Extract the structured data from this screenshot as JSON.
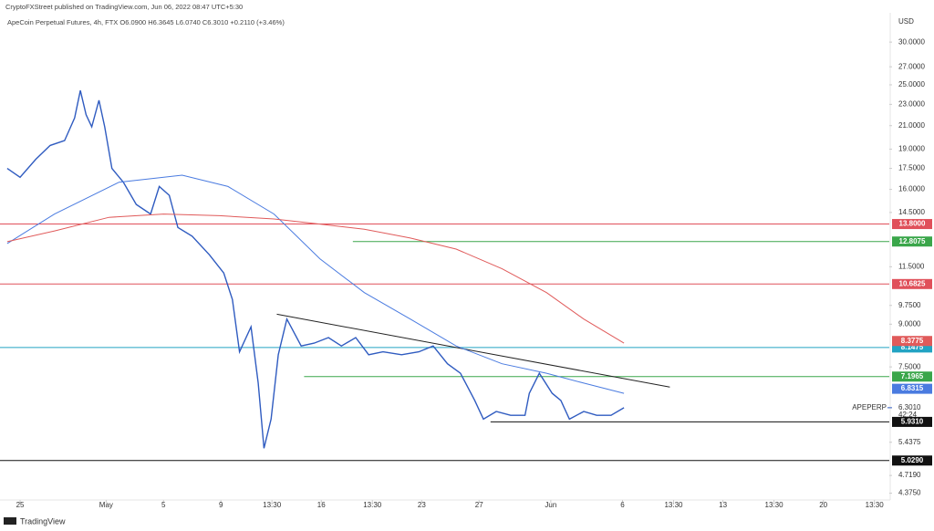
{
  "header": {
    "publisher": "CryptoFXStreet published on TradingView.com, Jun 06, 2022 08:47 UTC+5:30",
    "footer": "TradingView"
  },
  "chart_data": {
    "type": "line",
    "title": "ApeCoin Perpetual Futures, 4h, FTX  O6.0900 H6.3645 L6.0740 C6.3010 +0.2110 (+3.46%)",
    "y_unit": "USD",
    "log_scale": true,
    "grid": false,
    "xlim": [
      -1.4,
      60.6
    ],
    "ylim": [
      4.25,
      34
    ],
    "xticks": [
      {
        "value": 0,
        "label": "25"
      },
      {
        "value": 6,
        "label": "May"
      },
      {
        "value": 10,
        "label": "5"
      },
      {
        "value": 14,
        "label": "9"
      },
      {
        "value": 17.56,
        "label": "13:30"
      },
      {
        "value": 21,
        "label": "16"
      },
      {
        "value": 24.56,
        "label": "13:30"
      },
      {
        "value": 28,
        "label": "23"
      },
      {
        "value": 32,
        "label": "27"
      },
      {
        "value": 37,
        "label": "Jun"
      },
      {
        "value": 42,
        "label": "6"
      },
      {
        "value": 45.56,
        "label": "13:30"
      },
      {
        "value": 49,
        "label": "13"
      },
      {
        "value": 52.56,
        "label": "13:30"
      },
      {
        "value": 56,
        "label": "20"
      },
      {
        "value": 59.56,
        "label": "13:30"
      }
    ],
    "yticks": [
      {
        "value": 30,
        "label": "30.0000"
      },
      {
        "value": 27,
        "label": "27.0000"
      },
      {
        "value": 25,
        "label": "25.0000"
      },
      {
        "value": 23,
        "label": "23.0000"
      },
      {
        "value": 21,
        "label": "21.0000"
      },
      {
        "value": 19,
        "label": "19.0000"
      },
      {
        "value": 17.5,
        "label": "17.5000"
      },
      {
        "value": 16,
        "label": "16.0000"
      },
      {
        "value": 14.5,
        "label": "14.5000"
      },
      {
        "value": 11.5,
        "label": "11.5000"
      },
      {
        "value": 9.75,
        "label": "9.7500"
      },
      {
        "value": 9,
        "label": "9.0000"
      },
      {
        "value": 7.5,
        "label": "7.5000"
      },
      {
        "value": 5.4375,
        "label": "5.4375"
      },
      {
        "value": 4.719,
        "label": "4.7190"
      },
      {
        "value": 4.375,
        "label": "4.3750"
      }
    ],
    "series": [
      {
        "color": "#2f5bc0",
        "width": 1.4,
        "x": [
          -0.9,
          0,
          1.1,
          2.1,
          3.1,
          3.8,
          4.2,
          4.6,
          5,
          5.5,
          5.9,
          6.4,
          7.2,
          8.1,
          9.1,
          9.7,
          10.4,
          11,
          12,
          13.2,
          14.2,
          14.8,
          15.3,
          16.1,
          16.6,
          17,
          17.5,
          18,
          18.6,
          19.6,
          20.5,
          21.5,
          22.4,
          23.4,
          24.3,
          25.3,
          26.6,
          27.8,
          28.8,
          29.8,
          30.7,
          31.7,
          32.3,
          33.2,
          34.2,
          35.2,
          35.5,
          36.2,
          37.1,
          37.7,
          38.3,
          39.3,
          40.2,
          41.2,
          42.1
        ],
        "values": [
          17.5,
          16.85,
          18.2,
          19.3,
          19.7,
          21.7,
          24.4,
          22,
          20.9,
          23.4,
          20.9,
          17.5,
          16.5,
          15,
          14.4,
          16.2,
          15.6,
          13.6,
          13.1,
          12.1,
          11.2,
          10,
          8,
          8.9,
          7,
          5.3,
          6,
          7.9,
          9.2,
          8.2,
          8.3,
          8.5,
          8.2,
          8.5,
          7.9,
          8,
          7.9,
          8,
          8.2,
          7.6,
          7.3,
          6.5,
          6,
          6.2,
          6.1,
          6.1,
          6.7,
          7.3,
          6.7,
          6.5,
          6,
          6.2,
          6.1,
          6.1,
          6.3
        ]
      },
      {
        "color": "#4a7be0",
        "width": 1,
        "x": [
          -0.9,
          2.4,
          6.9,
          11.3,
          14.5,
          17.7,
          20.9,
          24,
          27.2,
          30.4,
          33.6,
          36.7,
          39.3,
          42.1
        ],
        "values": [
          12.7,
          14.4,
          16.5,
          17,
          16.2,
          14.4,
          11.9,
          10.3,
          9.2,
          8.2,
          7.6,
          7.3,
          7,
          6.7
        ],
        "end_value": 6.8315,
        "end_label": "6.8315"
      },
      {
        "color": "#e05a5a",
        "width": 1,
        "x": [
          -0.9,
          2.4,
          6.2,
          10,
          13.9,
          17.7,
          20.9,
          24,
          27.2,
          30.4,
          33.6,
          36.7,
          39.3,
          42.1
        ],
        "values": [
          12.8,
          13.4,
          14.2,
          14.4,
          14.3,
          14.1,
          13.8,
          13.5,
          13,
          12.4,
          11.4,
          10.3,
          9.2,
          8.3
        ],
        "end_value": 8.3775,
        "end_label": "8.3775"
      }
    ],
    "levels": [
      {
        "value": 13.8,
        "label": "13.8000",
        "color": "#e0505a",
        "x_start": -1.4
      },
      {
        "value": 12.8075,
        "label": "12.8075",
        "color": "#3aa64a",
        "x_start": 23.2
      },
      {
        "value": 10.6825,
        "label": "10.6825",
        "color": "#e0505a",
        "x_start": -1.4
      },
      {
        "value": 8.1475,
        "label": "8.1475",
        "color": "#22a3c3",
        "x_start": -1.4
      },
      {
        "value": 7.1965,
        "label": "7.1965",
        "color": "#3aa64a",
        "x_start": 19.8
      },
      {
        "value": 5.931,
        "label": "5.9310",
        "color": "#111111",
        "x_start": 32.8
      },
      {
        "value": 5.029,
        "label": "5.0290",
        "color": "#111111",
        "x_start": -1.4
      }
    ],
    "trendline": {
      "x": [
        17.9,
        45.3
      ],
      "values": [
        9.39,
        6.88
      ],
      "color": "#222222"
    },
    "last_price": {
      "symbol": "APEPERP",
      "value": 6.301,
      "label": "6.3010",
      "countdown": "42:24"
    }
  }
}
